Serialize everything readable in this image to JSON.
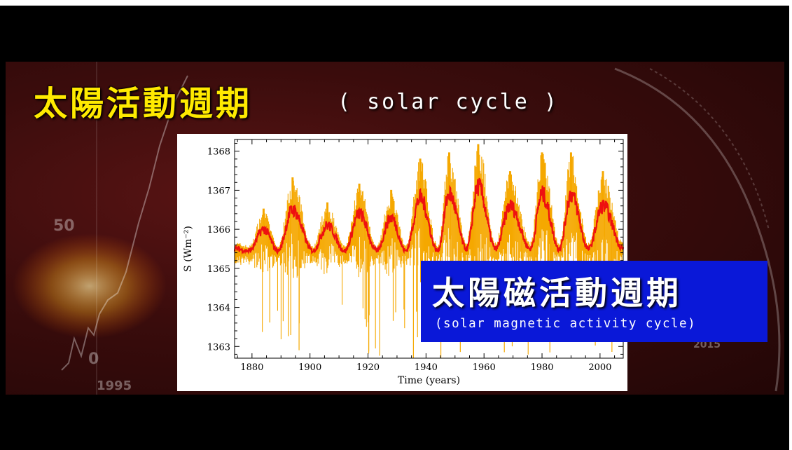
{
  "title": {
    "zh": "太陽活動週期",
    "en": "( solar cycle )"
  },
  "overlay": {
    "zh": "太陽磁活動週期",
    "en": "(solar magnetic activity cycle)"
  },
  "background": {
    "tick_50": "50",
    "tick_0": "0",
    "year_left": "1995",
    "year_right": "2015"
  },
  "colors": {
    "title_yellow": "#ffea00",
    "overlay_blue": "#0a18d8",
    "series_daily": "#f5a800",
    "series_smoothed": "#ee1010",
    "background_red": "#3a0c0c"
  },
  "chart_data": {
    "type": "line",
    "xlabel": "Time (years)",
    "ylabel": "S (Wm⁻²)",
    "xlim": [
      1874,
      2008
    ],
    "ylim": [
      1362.7,
      1368.3
    ],
    "x_ticks": [
      1880,
      1900,
      1920,
      1940,
      1960,
      1980,
      2000
    ],
    "y_ticks": [
      1363,
      1364,
      1365,
      1366,
      1367,
      1368
    ],
    "cycle_maxima": [
      {
        "x": 1884,
        "y": 1366.0
      },
      {
        "x": 1894,
        "y": 1366.5
      },
      {
        "x": 1906,
        "y": 1366.1
      },
      {
        "x": 1917,
        "y": 1366.4
      },
      {
        "x": 1928,
        "y": 1366.3
      },
      {
        "x": 1938,
        "y": 1366.8
      },
      {
        "x": 1948,
        "y": 1366.9
      },
      {
        "x": 1958,
        "y": 1367.1
      },
      {
        "x": 1969,
        "y": 1366.6
      },
      {
        "x": 1980,
        "y": 1366.9
      },
      {
        "x": 1990,
        "y": 1366.9
      },
      {
        "x": 2001,
        "y": 1366.6
      }
    ],
    "series": [
      {
        "style": "daily values",
        "color": "#f5a800",
        "range": [
          1362.7,
          1368.2
        ]
      },
      {
        "style": "smoothed",
        "color": "#ee1010",
        "x": [
          1874,
          1879,
          1884,
          1889,
          1894,
          1901,
          1906,
          1912,
          1917,
          1923,
          1928,
          1933,
          1938,
          1944,
          1948,
          1954,
          1958,
          1964,
          1969,
          1976,
          1980,
          1986,
          1990,
          1996,
          2001,
          2008
        ],
        "values": [
          1365.5,
          1365.45,
          1366.0,
          1365.45,
          1366.5,
          1365.45,
          1366.1,
          1365.45,
          1366.4,
          1365.45,
          1366.3,
          1365.45,
          1366.8,
          1365.45,
          1366.9,
          1365.5,
          1367.1,
          1365.5,
          1366.6,
          1365.5,
          1366.9,
          1365.5,
          1366.9,
          1365.5,
          1366.6,
          1365.5
        ]
      }
    ]
  }
}
